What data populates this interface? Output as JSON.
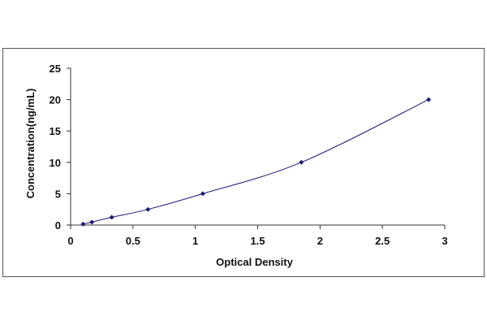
{
  "chart_data": {
    "type": "scatter",
    "title": "",
    "xlabel": "Optical Density",
    "ylabel": "Concentration(ng/mL)",
    "xlim": [
      0,
      3
    ],
    "ylim": [
      0,
      25
    ],
    "x_ticks": [
      "0",
      "0.5",
      "1",
      "1.5",
      "2",
      "2.5",
      "3"
    ],
    "y_ticks": [
      "0",
      "5",
      "10",
      "15",
      "20",
      "25"
    ],
    "grid": false,
    "legend": "none",
    "series": [
      {
        "points": [
          {
            "x": 0.1,
            "y": 0.16
          },
          {
            "x": 0.17,
            "y": 0.47
          },
          {
            "x": 0.33,
            "y": 1.25
          },
          {
            "x": 0.62,
            "y": 2.5
          },
          {
            "x": 1.06,
            "y": 5.0
          },
          {
            "x": 1.85,
            "y": 10.0
          },
          {
            "x": 2.87,
            "y": 20.0
          }
        ],
        "fit": "smooth curve",
        "marker": "diamond"
      }
    ],
    "colors": {
      "marker": "#1a1a7a",
      "line": "#1a1a7a",
      "axis": "#333333"
    }
  }
}
